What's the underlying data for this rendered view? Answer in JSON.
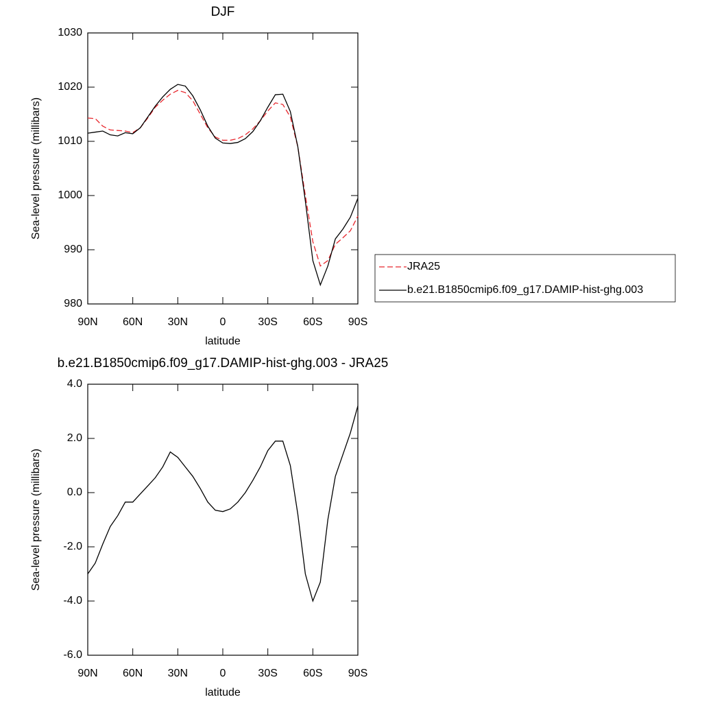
{
  "chart_data": [
    {
      "type": "line",
      "title": "DJF",
      "xlabel": "latitude",
      "ylabel": "Sea-level pressure (millibars)",
      "x": [
        90,
        85,
        80,
        75,
        70,
        65,
        60,
        55,
        50,
        45,
        40,
        35,
        30,
        25,
        20,
        15,
        10,
        5,
        0,
        -5,
        -10,
        -15,
        -20,
        -25,
        -30,
        -35,
        -40,
        -45,
        -50,
        -55,
        -60,
        -65,
        -70,
        -75,
        -80,
        -85,
        -90
      ],
      "xlim": [
        90,
        -90
      ],
      "xticks": [
        {
          "value": 90,
          "label": "90N"
        },
        {
          "value": 60,
          "label": "60N"
        },
        {
          "value": 30,
          "label": "30N"
        },
        0,
        {
          "value": -30,
          "label": "30S"
        },
        {
          "value": -60,
          "label": "60S"
        },
        {
          "value": -90,
          "label": "90S"
        }
      ],
      "ylim": [
        980,
        1030
      ],
      "yticks": [
        980,
        990,
        1000,
        1010,
        1020,
        1030
      ],
      "legend": "right",
      "series": [
        {
          "name": "JRA25",
          "color": "#e8262c",
          "dashed": true,
          "values": [
            1014.3,
            1014.2,
            1012.8,
            1012.1,
            1012.0,
            1011.9,
            1011.6,
            1012.5,
            1014.3,
            1016.3,
            1017.6,
            1018.7,
            1019.4,
            1019.0,
            1017.5,
            1015.0,
            1012.5,
            1010.8,
            1010.2,
            1010.2,
            1010.5,
            1011.2,
            1012.3,
            1013.8,
            1015.6,
            1017.1,
            1016.8,
            1014.5,
            1009,
            1000,
            991.5,
            987,
            988,
            991,
            992.2,
            993.5,
            996.2
          ]
        },
        {
          "name": "b.e21.B1850cmip6.f09_g17.DAMIP-hist-ghg.003",
          "color": "#000000",
          "dashed": false,
          "values": [
            1011.5,
            1011.7,
            1011.9,
            1011.2,
            1011.0,
            1011.6,
            1011.4,
            1012.5,
            1014.5,
            1016.5,
            1018.2,
            1019.6,
            1020.5,
            1020.2,
            1018.4,
            1015.8,
            1012.8,
            1010.6,
            1009.7,
            1009.6,
            1009.8,
            1010.5,
            1011.8,
            1013.8,
            1016.3,
            1018.6,
            1018.7,
            1015.5,
            1009,
            999,
            988,
            983.5,
            987,
            992,
            993.8,
            996,
            999.5
          ]
        }
      ]
    },
    {
      "type": "line",
      "title": "b.e21.B1850cmip6.f09_g17.DAMIP-hist-ghg.003 - JRA25",
      "xlabel": "latitude",
      "ylabel": "Sea-level pressure (millibars)",
      "x": [
        90,
        85,
        80,
        75,
        70,
        65,
        60,
        55,
        50,
        45,
        40,
        35,
        30,
        25,
        20,
        15,
        10,
        5,
        0,
        -5,
        -10,
        -15,
        -20,
        -25,
        -30,
        -35,
        -40,
        -45,
        -50,
        -55,
        -60,
        -65,
        -70,
        -75,
        -80,
        -85,
        -90
      ],
      "xlim": [
        90,
        -90
      ],
      "xticks": [
        {
          "value": 90,
          "label": "90N"
        },
        {
          "value": 60,
          "label": "60N"
        },
        {
          "value": 30,
          "label": "30N"
        },
        0,
        {
          "value": -30,
          "label": "30S"
        },
        {
          "value": -60,
          "label": "60S"
        },
        {
          "value": -90,
          "label": "90S"
        }
      ],
      "ylim": [
        -6,
        4
      ],
      "yticks": [
        {
          "value": -6,
          "label": "-6.0"
        },
        {
          "value": -4,
          "label": "-4.0"
        },
        {
          "value": -2,
          "label": "-2.0"
        },
        {
          "value": 0,
          "label": "0.0"
        },
        {
          "value": 2,
          "label": "2.0"
        },
        {
          "value": 4,
          "label": "4.0"
        }
      ],
      "color": "#000000",
      "values": [
        -3.0,
        -2.6,
        -1.9,
        -1.25,
        -0.85,
        -0.35,
        -0.35,
        -0.05,
        0.25,
        0.55,
        0.95,
        1.5,
        1.3,
        0.95,
        0.6,
        0.15,
        -0.35,
        -0.65,
        -0.7,
        -0.6,
        -0.35,
        0.0,
        0.45,
        0.95,
        1.55,
        1.9,
        1.9,
        1.0,
        -0.8,
        -3.0,
        -4.0,
        -3.3,
        -1.0,
        0.6,
        1.4,
        2.2,
        3.2
      ]
    }
  ]
}
